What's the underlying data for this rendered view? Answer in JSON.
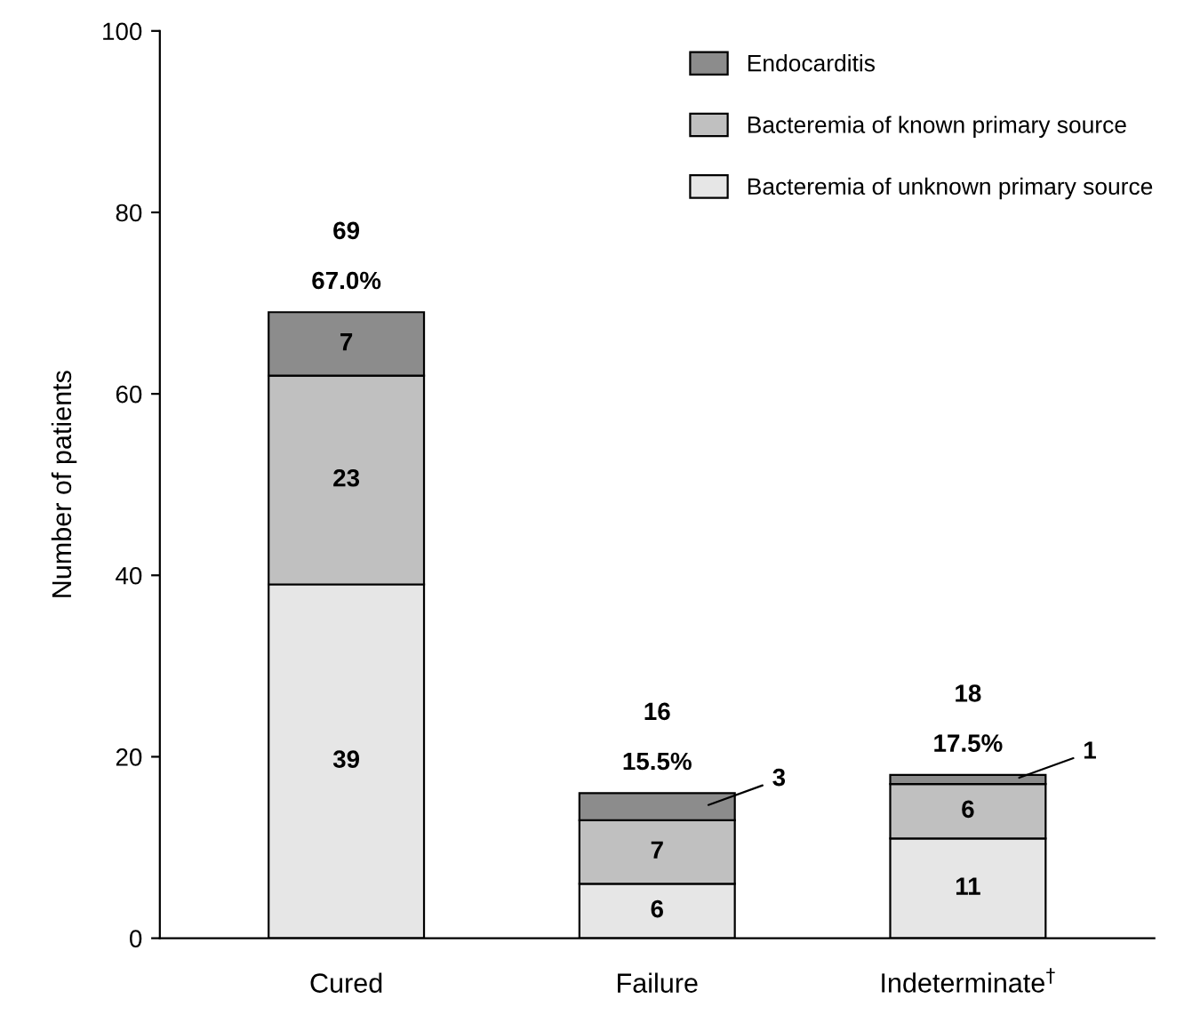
{
  "chart_data": {
    "type": "bar",
    "stacked": true,
    "ylabel": "Number of patients",
    "categories": [
      "Cured",
      "Failure",
      "Indeterminate$^{†}$"
    ],
    "series": [
      {
        "name": "Bacteremia of unknown primary source",
        "color": "#e6e6e6",
        "values": [
          39,
          6,
          11
        ]
      },
      {
        "name": "Bacteremia of known primary source",
        "color": "#c0c0c0",
        "values": [
          23,
          7,
          6
        ]
      },
      {
        "name": "Endocarditis",
        "color": "#8c8c8c",
        "values": [
          7,
          3,
          1
        ]
      }
    ],
    "data_labels": true,
    "totals": [
      "69",
      "16",
      "18"
    ],
    "annotations": [
      {
        "text": "67.0%",
        "x": "Cured",
        "y": 69
      },
      {
        "text": "15.5%",
        "x": "Failure",
        "y": 16
      },
      {
        "text": "17.5%",
        "x": "Indeterminate$^{†}$",
        "y": 18
      }
    ],
    "ylim": [
      0,
      100
    ],
    "yticks": [
      0,
      20,
      40,
      60,
      80,
      100
    ],
    "grid": false,
    "legend": "top right"
  }
}
